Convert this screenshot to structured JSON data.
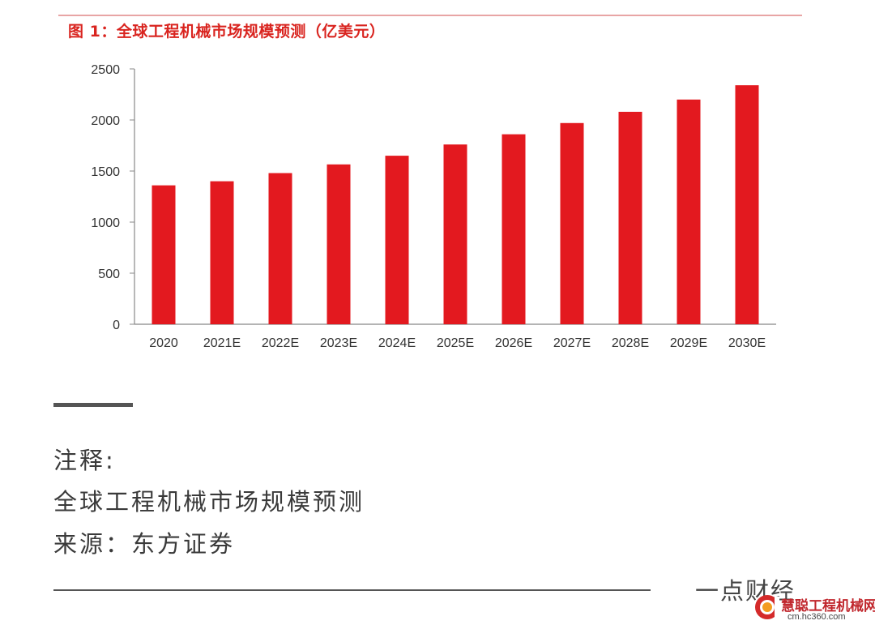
{
  "chart_data": {
    "type": "bar",
    "title": "图 1：全球工程机械市场规模预测（亿美元）",
    "categories": [
      "2020",
      "2021E",
      "2022E",
      "2023E",
      "2024E",
      "2025E",
      "2026E",
      "2027E",
      "2028E",
      "2029E",
      "2030E"
    ],
    "values": [
      1360,
      1400,
      1480,
      1565,
      1650,
      1760,
      1860,
      1970,
      2080,
      2200,
      2340
    ],
    "yticks": [
      "0",
      "500",
      "1000",
      "1500",
      "2000",
      "2500"
    ],
    "ylim": [
      0,
      2500
    ],
    "bar_color": "#e3191f",
    "grid": false,
    "legend": "none"
  },
  "notes": {
    "label": "注释:",
    "text": "全球工程机械市场规模预测",
    "source": "来源：东方证券"
  },
  "brand": {
    "text": "一点财经"
  },
  "watermark": {
    "name": "慧聪工程机械网",
    "url": "cm.hc360.com"
  }
}
